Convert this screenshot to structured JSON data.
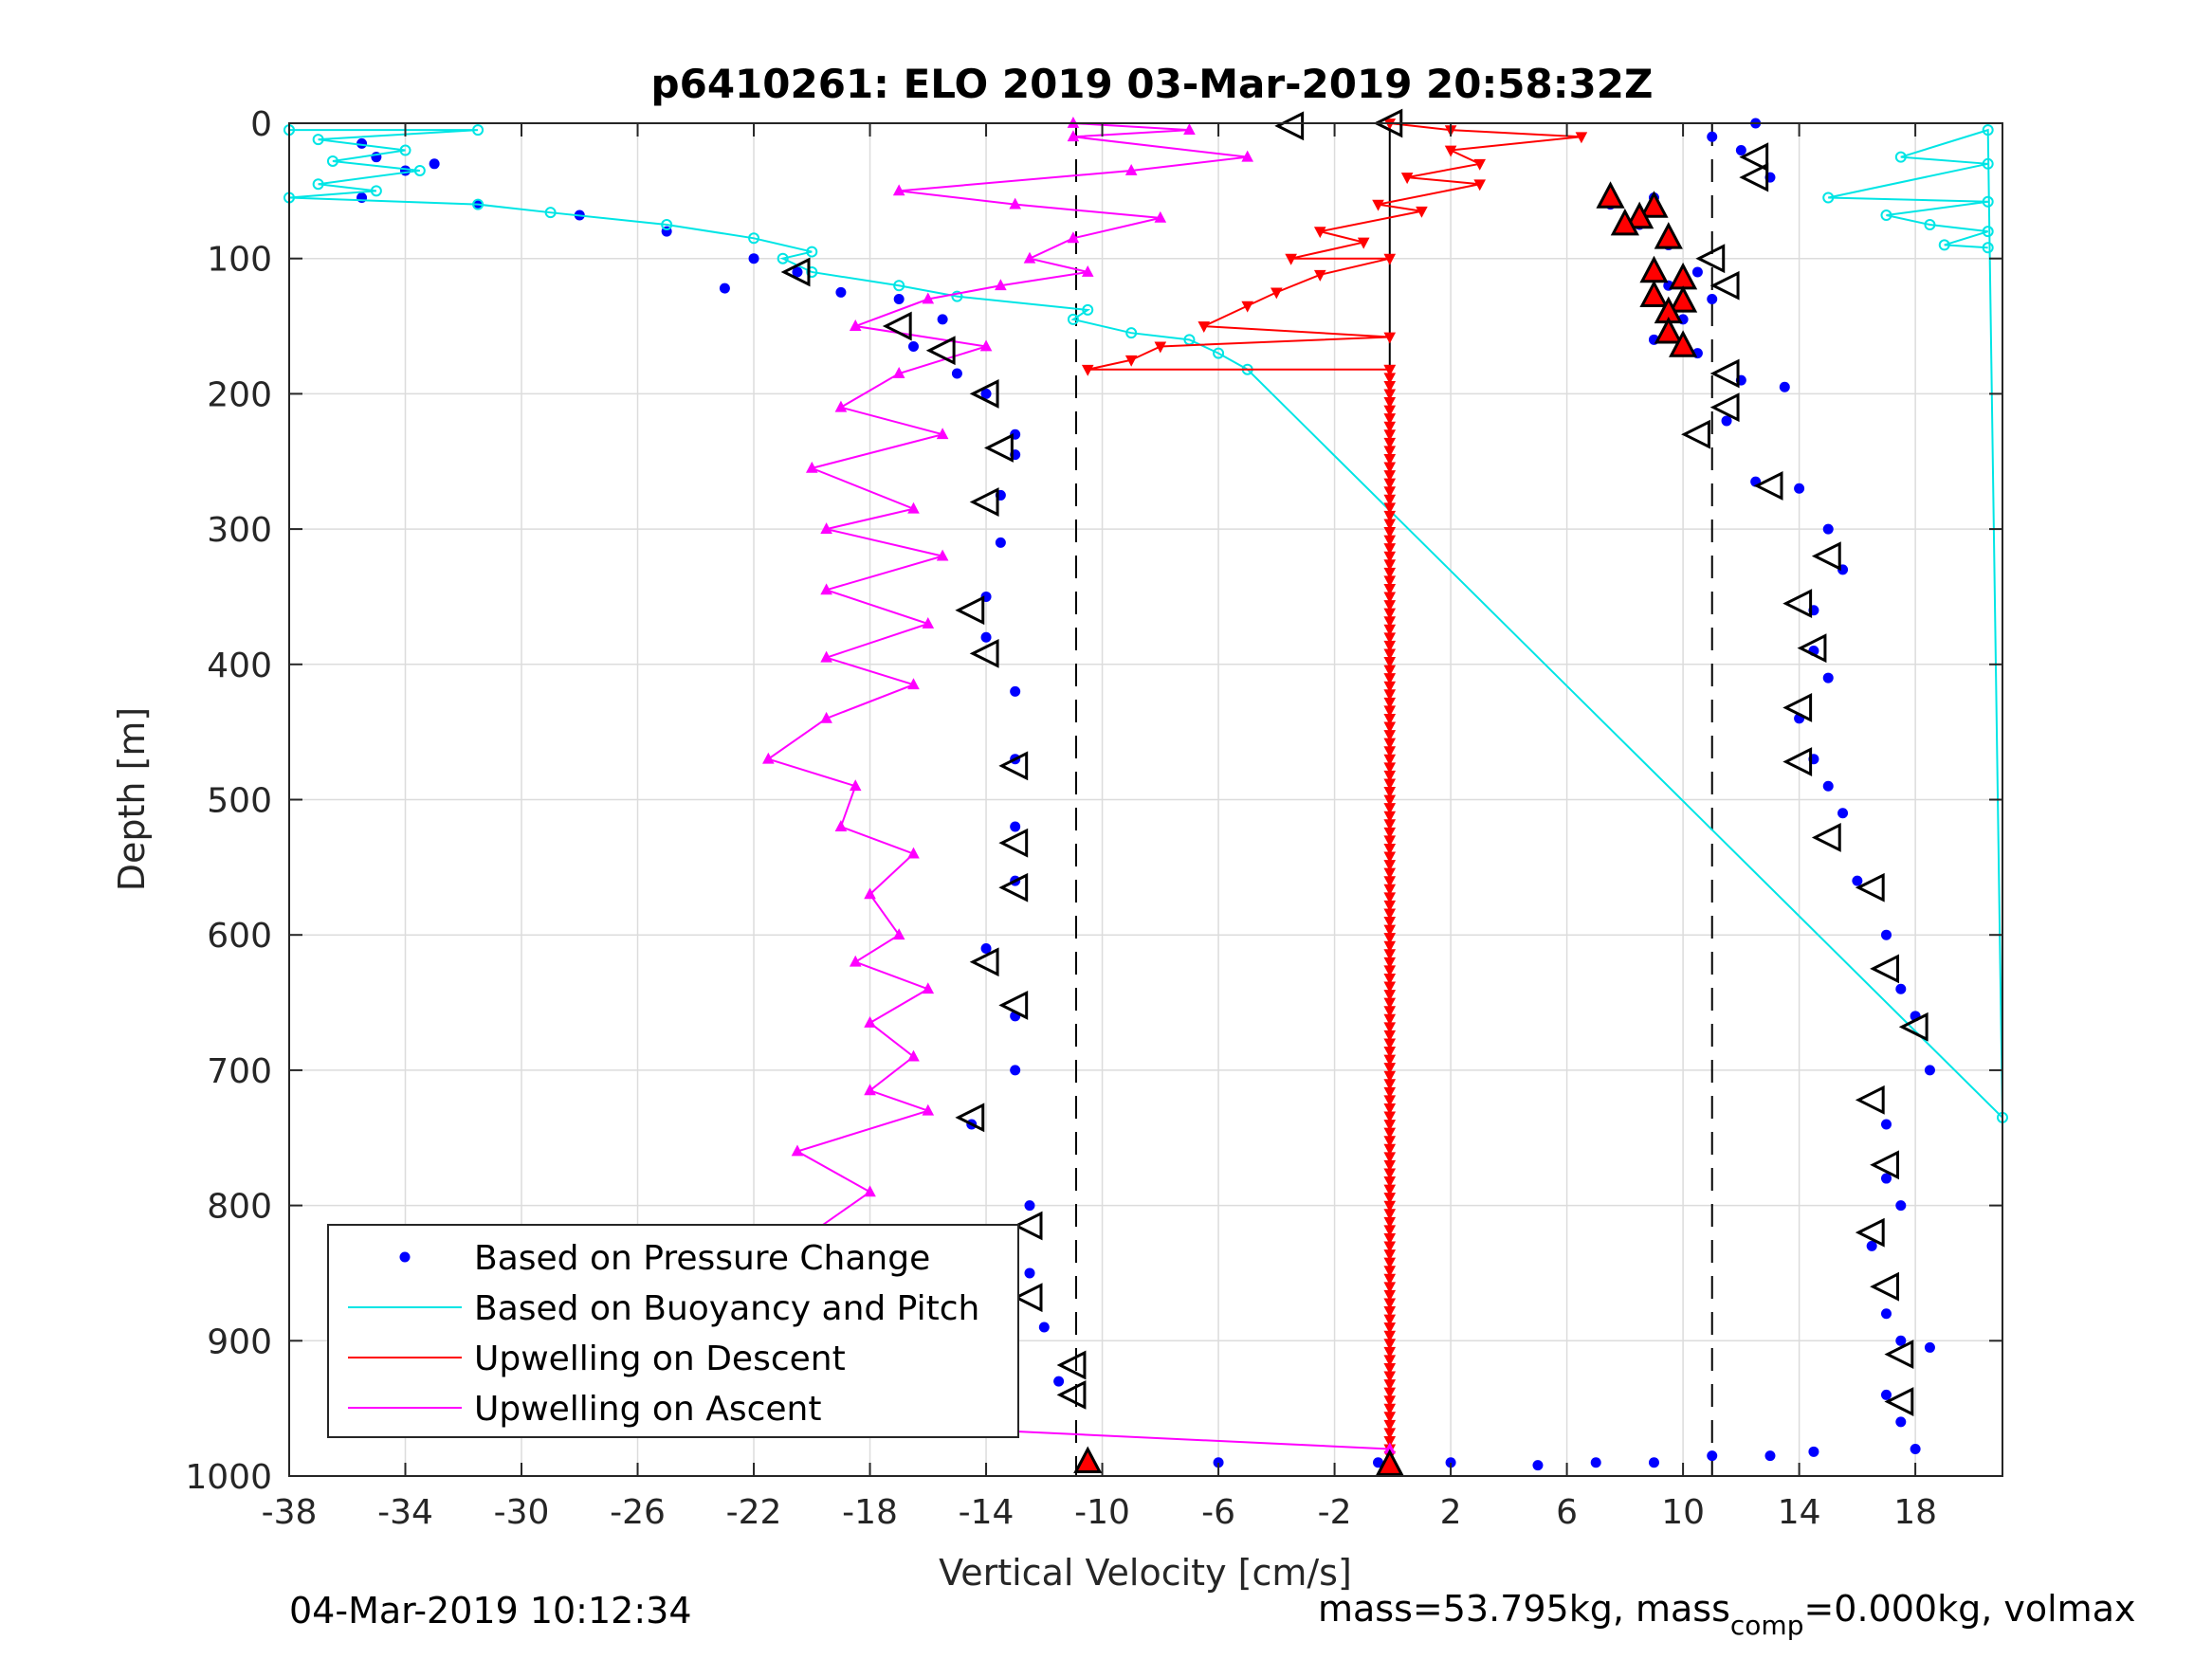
{
  "chart_data": {
    "type": "scatter",
    "title": "p6410261: ELO 2019 03-Mar-2019 20:58:32Z",
    "xlabel": "Vertical Velocity [cm/s]",
    "ylabel": "Depth [m]",
    "xlim": [
      -38,
      21
    ],
    "ylim": [
      0,
      1000
    ],
    "y_reversed": true,
    "grid": true,
    "xticks": [
      "-38",
      "-34",
      "-30",
      "-26",
      "-22",
      "-18",
      "-14",
      "-10",
      "-6",
      "-2",
      "2",
      "6",
      "10",
      "14",
      "18"
    ],
    "xtick_values": [
      -38,
      -34,
      -30,
      -26,
      -22,
      -18,
      -14,
      -10,
      -6,
      -2,
      2,
      6,
      10,
      14,
      18
    ],
    "yticks": [
      "0",
      "100",
      "200",
      "300",
      "400",
      "500",
      "600",
      "700",
      "800",
      "900",
      "1000"
    ],
    "ytick_values": [
      0,
      100,
      200,
      300,
      400,
      500,
      600,
      700,
      800,
      900,
      1000
    ],
    "reference_lines": {
      "dashed_x": [
        -10.9,
        11
      ],
      "solid_x": [
        -0.1
      ]
    },
    "legend": {
      "position": "bottom-left",
      "entries": [
        "Based on Pressure Change",
        "Based on Buoyancy and Pitch",
        "Upwelling on Descent",
        "Upwelling on Ascent"
      ]
    },
    "series": [
      {
        "name": "Based on Pressure Change",
        "style": "points",
        "color": "#0000ff",
        "points": [
          [
            -35.5,
            15
          ],
          [
            -35,
            25
          ],
          [
            -34,
            35
          ],
          [
            -33,
            30
          ],
          [
            -35.5,
            55
          ],
          [
            -31.5,
            60
          ],
          [
            -28,
            68
          ],
          [
            -25,
            80
          ],
          [
            -22,
            100
          ],
          [
            -20.5,
            110
          ],
          [
            -23,
            122
          ],
          [
            -19,
            125
          ],
          [
            -17,
            130
          ],
          [
            -15.5,
            145
          ],
          [
            -16.5,
            165
          ],
          [
            -15,
            185
          ],
          [
            -14,
            200
          ],
          [
            -13,
            230
          ],
          [
            -13,
            245
          ],
          [
            -13.5,
            275
          ],
          [
            -13.5,
            310
          ],
          [
            -14,
            350
          ],
          [
            -14,
            380
          ],
          [
            -13,
            420
          ],
          [
            -13,
            470
          ],
          [
            -13,
            520
          ],
          [
            -13,
            560
          ],
          [
            -14,
            610
          ],
          [
            -13,
            660
          ],
          [
            -13,
            700
          ],
          [
            -14.5,
            740
          ],
          [
            -12.5,
            800
          ],
          [
            -12.5,
            850
          ],
          [
            -12,
            890
          ],
          [
            -11.5,
            930
          ],
          [
            -10.5,
            990
          ],
          [
            -6,
            990
          ],
          [
            -0.5,
            990
          ],
          [
            2,
            990
          ],
          [
            5,
            992
          ],
          [
            7,
            990
          ],
          [
            9,
            990
          ],
          [
            11,
            985
          ],
          [
            13,
            985
          ],
          [
            14.5,
            982
          ],
          [
            11,
            10
          ],
          [
            12,
            20
          ],
          [
            13,
            40
          ],
          [
            12.5,
            0
          ],
          [
            9,
            55
          ],
          [
            7.5,
            60
          ],
          [
            8.5,
            75
          ],
          [
            9.5,
            90
          ],
          [
            10.5,
            110
          ],
          [
            9.5,
            120
          ],
          [
            11,
            130
          ],
          [
            10,
            145
          ],
          [
            9,
            160
          ],
          [
            10.5,
            170
          ],
          [
            12,
            190
          ],
          [
            13.5,
            195
          ],
          [
            11.5,
            220
          ],
          [
            12.5,
            265
          ],
          [
            14,
            270
          ],
          [
            15,
            300
          ],
          [
            15.5,
            330
          ],
          [
            14.5,
            360
          ],
          [
            14.5,
            390
          ],
          [
            15,
            410
          ],
          [
            14,
            440
          ],
          [
            14.5,
            470
          ],
          [
            15,
            490
          ],
          [
            15.5,
            510
          ],
          [
            16,
            560
          ],
          [
            17,
            600
          ],
          [
            17.5,
            640
          ],
          [
            18,
            660
          ],
          [
            18.5,
            700
          ],
          [
            17,
            740
          ],
          [
            17,
            780
          ],
          [
            17.5,
            800
          ],
          [
            16.5,
            830
          ],
          [
            17,
            880
          ],
          [
            17.5,
            900
          ],
          [
            18.5,
            905
          ],
          [
            17,
            940
          ],
          [
            17.5,
            960
          ],
          [
            18,
            980
          ]
        ]
      },
      {
        "name": "Based on Buoyancy and Pitch",
        "style": "line-markers",
        "color": "#00e5e5",
        "points": [
          [
            -38,
            5
          ],
          [
            -31.5,
            5
          ],
          [
            -37,
            12
          ],
          [
            -34,
            20
          ],
          [
            -36.5,
            28
          ],
          [
            -33.5,
            35
          ],
          [
            -37,
            45
          ],
          [
            -35,
            50
          ],
          [
            -38,
            55
          ],
          [
            -31.5,
            60
          ],
          [
            -29,
            66
          ],
          [
            -25,
            75
          ],
          [
            -22,
            85
          ],
          [
            -20,
            95
          ],
          [
            -21,
            100
          ],
          [
            -20,
            110
          ],
          [
            -17,
            120
          ],
          [
            -15,
            128
          ],
          [
            -10.5,
            138
          ],
          [
            -11,
            145
          ],
          [
            -9,
            155
          ],
          [
            -7,
            160
          ],
          [
            -6,
            170
          ],
          [
            -5,
            182
          ],
          [
            21,
            735
          ],
          [
            20.5,
            5
          ],
          [
            17.5,
            25
          ],
          [
            20.5,
            30
          ],
          [
            15,
            55
          ],
          [
            20.5,
            58
          ],
          [
            17,
            68
          ],
          [
            18.5,
            75
          ],
          [
            20.5,
            80
          ],
          [
            19,
            90
          ],
          [
            20.5,
            92
          ]
        ]
      },
      {
        "name": "Upwelling on Descent",
        "style": "line-markers",
        "color": "#ff0000",
        "points": [
          [
            -0.1,
            0
          ],
          [
            2,
            5
          ],
          [
            6.5,
            10
          ],
          [
            2,
            20
          ],
          [
            3,
            30
          ],
          [
            0.5,
            40
          ],
          [
            3,
            45
          ],
          [
            -0.5,
            60
          ],
          [
            1,
            65
          ],
          [
            -2.5,
            80
          ],
          [
            -1,
            88
          ],
          [
            -3.5,
            100
          ],
          [
            -0.1,
            100
          ],
          [
            -2.5,
            112
          ],
          [
            -4,
            125
          ],
          [
            -5,
            135
          ],
          [
            -6.5,
            150
          ],
          [
            -0.1,
            158
          ],
          [
            -8,
            165
          ],
          [
            -9,
            175
          ],
          [
            -10.5,
            182
          ],
          [
            -0.1,
            182
          ],
          [
            -0.1,
            985
          ]
        ]
      },
      {
        "name": "Upwelling on Ascent",
        "style": "line-markers",
        "color": "#ff00ff",
        "points": [
          [
            -11,
            0
          ],
          [
            -7,
            5
          ],
          [
            -11,
            10
          ],
          [
            -5,
            25
          ],
          [
            -9,
            35
          ],
          [
            -17,
            50
          ],
          [
            -13,
            60
          ],
          [
            -8,
            70
          ],
          [
            -11,
            85
          ],
          [
            -12.5,
            100
          ],
          [
            -10.5,
            110
          ],
          [
            -13.5,
            120
          ],
          [
            -16,
            130
          ],
          [
            -18.5,
            150
          ],
          [
            -14,
            165
          ],
          [
            -17,
            185
          ],
          [
            -19,
            210
          ],
          [
            -15.5,
            230
          ],
          [
            -20,
            255
          ],
          [
            -16.5,
            285
          ],
          [
            -19.5,
            300
          ],
          [
            -15.5,
            320
          ],
          [
            -19.5,
            345
          ],
          [
            -16,
            370
          ],
          [
            -19.5,
            395
          ],
          [
            -16.5,
            415
          ],
          [
            -19.5,
            440
          ],
          [
            -21.5,
            470
          ],
          [
            -18.5,
            490
          ],
          [
            -19,
            520
          ],
          [
            -16.5,
            540
          ],
          [
            -18,
            570
          ],
          [
            -17,
            600
          ],
          [
            -18.5,
            620
          ],
          [
            -16,
            640
          ],
          [
            -18,
            665
          ],
          [
            -16.5,
            690
          ],
          [
            -18,
            715
          ],
          [
            -16,
            730
          ],
          [
            -20.5,
            760
          ],
          [
            -18,
            790
          ],
          [
            -20,
            820
          ],
          [
            -17,
            850
          ],
          [
            -19.5,
            880
          ],
          [
            -17,
            910
          ],
          [
            -16,
            930
          ],
          [
            -17.5,
            945
          ],
          [
            -15,
            965
          ],
          [
            -0.1,
            980
          ]
        ]
      }
    ],
    "markers": {
      "open_triangles": [
        [
          -3.5,
          2
        ],
        [
          -20.5,
          110
        ],
        [
          -17,
          150
        ],
        [
          -15.5,
          168
        ],
        [
          -14,
          200
        ],
        [
          -13.5,
          240
        ],
        [
          -14,
          280
        ],
        [
          -14.5,
          360
        ],
        [
          -14,
          392
        ],
        [
          -13,
          475
        ],
        [
          -13,
          532
        ],
        [
          -13,
          565
        ],
        [
          -14,
          620
        ],
        [
          -13,
          652
        ],
        [
          -14.5,
          735
        ],
        [
          -12.5,
          815
        ],
        [
          -12.5,
          868
        ],
        [
          -11,
          918
        ],
        [
          -11,
          940
        ],
        [
          -0.1,
          0
        ],
        [
          12.5,
          40
        ],
        [
          12.5,
          25
        ],
        [
          11.5,
          120
        ],
        [
          11,
          100
        ],
        [
          11.5,
          185
        ],
        [
          11.5,
          210
        ],
        [
          10.5,
          230
        ],
        [
          13,
          268
        ],
        [
          15,
          320
        ],
        [
          14,
          355
        ],
        [
          14.5,
          388
        ],
        [
          14,
          432
        ],
        [
          14,
          472
        ],
        [
          15,
          528
        ],
        [
          16.5,
          565
        ],
        [
          17,
          625
        ],
        [
          18,
          668
        ],
        [
          16.5,
          722
        ],
        [
          17,
          770
        ],
        [
          16.5,
          820
        ],
        [
          17,
          860
        ],
        [
          17.5,
          910
        ],
        [
          17.5,
          945
        ]
      ],
      "filled_triangles": [
        [
          7.5,
          55
        ],
        [
          9,
          62
        ],
        [
          8.5,
          70
        ],
        [
          8,
          75
        ],
        [
          9.5,
          85
        ],
        [
          9,
          110
        ],
        [
          10,
          115
        ],
        [
          9,
          128
        ],
        [
          10,
          132
        ],
        [
          9.5,
          140
        ],
        [
          9.5,
          155
        ],
        [
          10,
          165
        ],
        [
          -10.5,
          990
        ],
        [
          -0.1,
          992
        ]
      ]
    }
  },
  "footer": {
    "timestamp": "04-Mar-2019 10:12:34",
    "mass_text": "mass=53.795kg, mass",
    "mass_sub": "comp",
    "mass_rest": "=0.000kg, volmax"
  }
}
